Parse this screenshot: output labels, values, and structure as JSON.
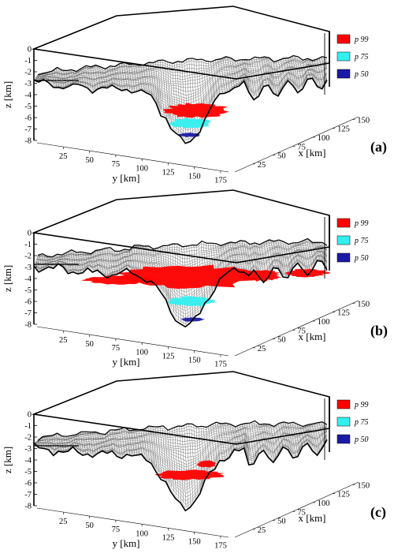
{
  "chart_data": [
    {
      "type": "surface3d",
      "panel_label": "(a)",
      "zlabel": "z [km]",
      "ylabel": "y [km]",
      "xlabel": "x [km]",
      "z_ticks": [
        "0",
        "-1",
        "-2",
        "-3",
        "-4",
        "-5",
        "-6",
        "-7",
        "-8"
      ],
      "y_ticks": [
        "25",
        "50",
        "75",
        "100",
        "125",
        "150",
        "175"
      ],
      "x_ticks": [
        "25",
        "50",
        "75",
        "100",
        "125",
        "150"
      ],
      "zlim": [
        -8,
        0
      ],
      "legend": [
        {
          "label": "p 99",
          "color": "#ff0000"
        },
        {
          "label": "p 75",
          "color": "#33f0f0"
        },
        {
          "label": "p 50",
          "color": "#1a1aa6"
        }
      ]
    },
    {
      "type": "surface3d",
      "panel_label": "(b)",
      "zlabel": "z [km]",
      "ylabel": "y [km]",
      "xlabel": "x [km]",
      "z_ticks": [
        "0",
        "-1",
        "-2",
        "-3",
        "-4",
        "-5",
        "-6",
        "-7",
        "-8"
      ],
      "y_ticks": [
        "25",
        "50",
        "75",
        "100",
        "125",
        "150",
        "175"
      ],
      "x_ticks": [
        "25",
        "50",
        "75",
        "100",
        "125",
        "150"
      ],
      "zlim": [
        -8,
        0
      ],
      "legend": [
        {
          "label": "p 99",
          "color": "#ff0000"
        },
        {
          "label": "p 75",
          "color": "#33f0f0"
        },
        {
          "label": "p 50",
          "color": "#1a1aa6"
        }
      ]
    },
    {
      "type": "surface3d",
      "panel_label": "(c)",
      "zlabel": "z [km]",
      "ylabel": "y [km]",
      "xlabel": "x [km]",
      "z_ticks": [
        "0",
        "-1",
        "-2",
        "-3",
        "-4",
        "-5",
        "-6",
        "-7",
        "-8"
      ],
      "y_ticks": [
        "25",
        "50",
        "75",
        "100",
        "125",
        "150",
        "175"
      ],
      "x_ticks": [
        "25",
        "50",
        "75",
        "100",
        "125",
        "150"
      ],
      "zlim": [
        -8,
        0
      ],
      "legend": [
        {
          "label": "p 99",
          "color": "#ff0000"
        },
        {
          "label": "p 75",
          "color": "#33f0f0"
        },
        {
          "label": "p 50",
          "color": "#1a1aa6"
        }
      ]
    }
  ]
}
